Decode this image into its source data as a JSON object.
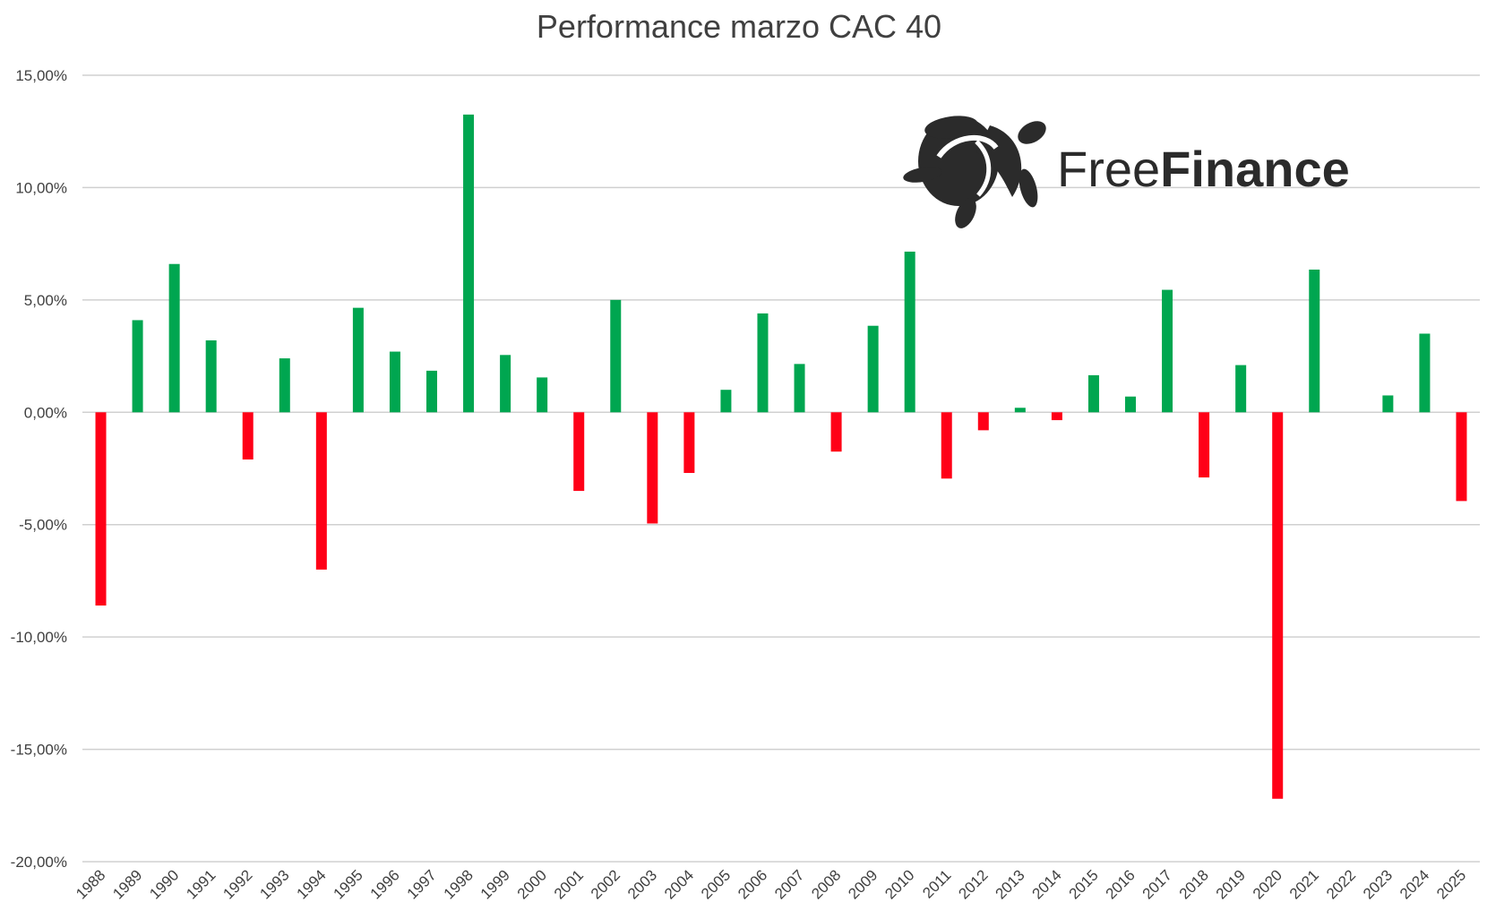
{
  "chart_data": {
    "type": "bar",
    "title": "Performance marzo CAC 40",
    "xlabel": "",
    "ylabel": "",
    "ylim": [
      -20,
      15
    ],
    "yticks": [
      15,
      10,
      5,
      0,
      -5,
      -10,
      -15,
      -20
    ],
    "ytick_labels": [
      "15,00%",
      "10,00%",
      "5,00%",
      "0,00%",
      "-5,00%",
      "-10,00%",
      "-15,00%",
      "-20,00%"
    ],
    "grid": true,
    "categories": [
      "1988",
      "1989",
      "1990",
      "1991",
      "1992",
      "1993",
      "1994",
      "1995",
      "1996",
      "1997",
      "1998",
      "1999",
      "2000",
      "2001",
      "2002",
      "2003",
      "2004",
      "2005",
      "2006",
      "2007",
      "2008",
      "2009",
      "2010",
      "2011",
      "2012",
      "2013",
      "2014",
      "2015",
      "2016",
      "2017",
      "2018",
      "2019",
      "2020",
      "2021",
      "2022",
      "2023",
      "2024",
      "2025"
    ],
    "values": [
      -8.6,
      4.1,
      6.6,
      3.2,
      -2.1,
      2.4,
      -7.0,
      4.65,
      2.7,
      1.85,
      13.25,
      2.55,
      1.55,
      -3.5,
      5.0,
      -4.95,
      -2.7,
      1.0,
      4.4,
      2.15,
      -1.75,
      3.85,
      7.15,
      -2.95,
      -0.8,
      0.2,
      -0.35,
      1.65,
      0.7,
      5.45,
      -2.9,
      2.1,
      -17.2,
      6.35,
      0.0,
      0.75,
      3.5,
      -3.95
    ],
    "colors": {
      "positive": "#00a650",
      "negative": "#ff0017",
      "grid": "#d0d0d0"
    }
  },
  "logo": {
    "brand_light": "Free",
    "brand_bold": "Finance",
    "icon": "turtle-logo-icon"
  }
}
